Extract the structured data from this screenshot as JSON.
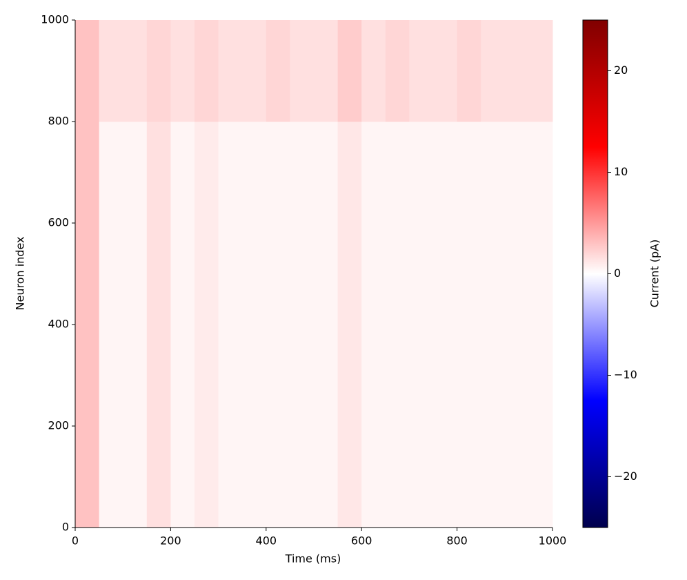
{
  "chart_data": {
    "type": "heatmap",
    "x_label": "Time (ms)",
    "y_label": "Neuron index",
    "colorbar_label": "Current (pA)",
    "xbins": [
      0,
      50,
      100,
      150,
      200,
      250,
      300,
      350,
      400,
      450,
      500,
      550,
      600,
      650,
      700,
      750,
      800,
      850,
      900,
      950,
      1000
    ],
    "ybins": [
      0,
      200,
      400,
      600,
      800,
      1000
    ],
    "values": [
      [
        3,
        0.5,
        0.5,
        1.5,
        0.5,
        1,
        0.5,
        0.5,
        0.5,
        0.5,
        0.5,
        1.2,
        0.5,
        0.5,
        0.5,
        0.5,
        0.5,
        0.5,
        0.5,
        0.5
      ],
      [
        3,
        0.5,
        0.5,
        1.5,
        0.5,
        1,
        0.5,
        0.5,
        0.5,
        0.5,
        0.5,
        1.2,
        0.5,
        0.5,
        0.5,
        0.5,
        0.5,
        0.5,
        0.5,
        0.5
      ],
      [
        3,
        0.5,
        0.5,
        1.5,
        0.5,
        1,
        0.5,
        0.5,
        0.5,
        0.5,
        0.5,
        1.2,
        0.5,
        0.5,
        0.5,
        0.5,
        0.5,
        0.5,
        0.5,
        0.5
      ],
      [
        3,
        0.5,
        0.5,
        1.5,
        0.5,
        1,
        0.5,
        0.5,
        0.5,
        0.5,
        0.5,
        1.2,
        0.5,
        0.5,
        0.5,
        0.5,
        0.5,
        0.5,
        0.5,
        0.5
      ],
      [
        3,
        1.5,
        1.5,
        2,
        1.5,
        2,
        1.5,
        1.5,
        2,
        1.5,
        1.5,
        2.5,
        1.5,
        2,
        1.5,
        1.5,
        2,
        1.5,
        1.5,
        1.5
      ]
    ],
    "xlim": [
      0,
      1000
    ],
    "ylim": [
      0,
      1000
    ],
    "xticks": [
      0,
      200,
      400,
      600,
      800,
      1000
    ],
    "yticks": [
      0,
      200,
      400,
      600,
      800,
      1000
    ],
    "clim": [
      -25,
      25
    ],
    "cticks": [
      {
        "value": -20,
        "label": "−20"
      },
      {
        "value": -10,
        "label": "−10"
      },
      0,
      10,
      20
    ],
    "colormap": [
      "#00004d",
      "#0000ff",
      "#ffffff",
      "#ff0000",
      "#800000"
    ]
  }
}
